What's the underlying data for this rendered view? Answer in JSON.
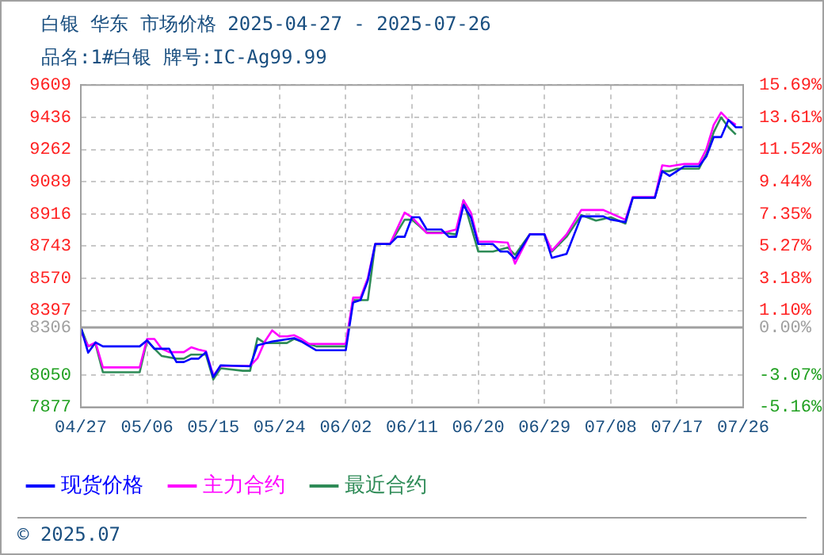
{
  "chart_data": {
    "type": "line",
    "title": "白银 华东 市场价格 2025-04-27 - 2025-07-26",
    "subtitle": "品名:1#白银 牌号:IC-Ag99.99",
    "annotations": [
      "© 2025.07"
    ],
    "legend": "bottom",
    "grid": true,
    "marker": "none",
    "line_style": "solid",
    "ylim": [
      7877,
      9609
    ],
    "yticks": [
      7877,
      8050,
      8306,
      8397,
      8570,
      8743,
      8916,
      9089,
      9262,
      9436,
      9609
    ],
    "y2lim": [
      -5.16,
      15.69
    ],
    "y2ticks": [
      {
        "value": -5.16,
        "label": "-5.16%"
      },
      {
        "value": -3.07,
        "label": "-3.07%"
      },
      {
        "value": 0,
        "label": "0.00%"
      },
      {
        "value": 1.1,
        "label": "1.10%"
      },
      {
        "value": 3.18,
        "label": "3.18%"
      },
      {
        "value": 5.27,
        "label": "5.27%"
      },
      {
        "value": 7.35,
        "label": "7.35%"
      },
      {
        "value": 9.44,
        "label": "9.44%"
      },
      {
        "value": 11.52,
        "label": "11.52%"
      },
      {
        "value": 13.61,
        "label": "13.61%"
      },
      {
        "value": 15.69,
        "label": "15.69%"
      }
    ],
    "xlim": [
      "2025-04-27",
      "2025-07-26"
    ],
    "xticks": [
      {
        "value": "2025-04-27",
        "label": "04/27"
      },
      {
        "value": "2025-05-06",
        "label": "05/06"
      },
      {
        "value": "2025-05-15",
        "label": "05/15"
      },
      {
        "value": "2025-05-24",
        "label": "05/24"
      },
      {
        "value": "2025-06-02",
        "label": "06/02"
      },
      {
        "value": "2025-06-11",
        "label": "06/11"
      },
      {
        "value": "2025-06-20",
        "label": "06/20"
      },
      {
        "value": "2025-06-29",
        "label": "06/29"
      },
      {
        "value": "2025-07-08",
        "label": "07/08"
      },
      {
        "value": "2025-07-17",
        "label": "07/17"
      },
      {
        "value": "2025-07-26",
        "label": "07/26"
      }
    ],
    "ref_lines": [
      {
        "axis": "y",
        "value": 8306,
        "color": "#a0a0a0",
        "line_style": "solid"
      }
    ],
    "series": [
      {
        "name": "现货价格",
        "color": "#0000ff",
        "x": [
          "2025-04-27",
          "2025-04-28",
          "2025-04-29",
          "2025-04-30",
          "2025-05-05",
          "2025-05-06",
          "2025-05-07",
          "2025-05-09",
          "2025-05-10",
          "2025-05-11",
          "2025-05-12",
          "2025-05-13",
          "2025-05-14",
          "2025-05-15",
          "2025-05-16",
          "2025-05-20",
          "2025-05-21",
          "2025-05-23",
          "2025-05-26",
          "2025-05-27",
          "2025-05-29",
          "2025-06-02",
          "2025-06-03",
          "2025-06-04",
          "2025-06-05",
          "2025-06-06",
          "2025-06-08",
          "2025-06-09",
          "2025-06-10",
          "2025-06-11",
          "2025-06-12",
          "2025-06-13",
          "2025-06-15",
          "2025-06-16",
          "2025-06-17",
          "2025-06-18",
          "2025-06-19",
          "2025-06-20",
          "2025-06-22",
          "2025-06-23",
          "2025-06-24",
          "2025-06-25",
          "2025-06-27",
          "2025-06-29",
          "2025-06-30",
          "2025-07-01",
          "2025-07-02",
          "2025-07-04",
          "2025-07-07",
          "2025-07-08",
          "2025-07-10",
          "2025-07-11",
          "2025-07-14",
          "2025-07-15",
          "2025-07-16",
          "2025-07-17",
          "2025-07-18",
          "2025-07-20",
          "2025-07-21",
          "2025-07-22",
          "2025-07-23",
          "2025-07-24",
          "2025-07-25",
          "2025-07-26"
        ],
        "values": [
          8306,
          8170,
          8225,
          8204,
          8204,
          8236,
          8191,
          8191,
          8120,
          8120,
          8138,
          8138,
          8173,
          8039,
          8102,
          8097,
          8210,
          8230,
          8248,
          8230,
          8183,
          8183,
          8440,
          8453,
          8558,
          8754,
          8754,
          8793,
          8793,
          8898,
          8898,
          8832,
          8832,
          8793,
          8793,
          8963,
          8898,
          8754,
          8754,
          8714,
          8714,
          8675,
          8806,
          8806,
          8680,
          8690,
          8701,
          8903,
          8903,
          8885,
          8872,
          9003,
          9003,
          9146,
          9120,
          9146,
          9172,
          9172,
          9225,
          9329,
          9329,
          9421,
          9382,
          9382
        ]
      },
      {
        "name": "主力合约",
        "color": "#ff00ff",
        "x": [
          "2025-04-27",
          "2025-04-28",
          "2025-04-29",
          "2025-04-30",
          "2025-05-05",
          "2025-05-06",
          "2025-05-07",
          "2025-05-08",
          "2025-05-09",
          "2025-05-11",
          "2025-05-12",
          "2025-05-13",
          "2025-05-14",
          "2025-05-15",
          "2025-05-16",
          "2025-05-20",
          "2025-05-21",
          "2025-05-22",
          "2025-05-23",
          "2025-05-24",
          "2025-05-25",
          "2025-05-26",
          "2025-05-27",
          "2025-05-28",
          "2025-06-02",
          "2025-06-03",
          "2025-06-04",
          "2025-06-05",
          "2025-06-06",
          "2025-06-08",
          "2025-06-10",
          "2025-06-11",
          "2025-06-13",
          "2025-06-15",
          "2025-06-17",
          "2025-06-18",
          "2025-06-19",
          "2025-06-20",
          "2025-06-22",
          "2025-06-24",
          "2025-06-25",
          "2025-06-27",
          "2025-06-29",
          "2025-06-30",
          "2025-07-02",
          "2025-07-04",
          "2025-07-07",
          "2025-07-10",
          "2025-07-11",
          "2025-07-14",
          "2025-07-15",
          "2025-07-16",
          "2025-07-18",
          "2025-07-20",
          "2025-07-21",
          "2025-07-22",
          "2025-07-23",
          "2025-07-24",
          "2025-07-25"
        ],
        "values": [
          8283,
          8205,
          8225,
          8091,
          8091,
          8244,
          8244,
          8191,
          8173,
          8173,
          8199,
          8186,
          8178,
          8047,
          8099,
          8099,
          8140,
          8230,
          8290,
          8258,
          8258,
          8264,
          8244,
          8217,
          8217,
          8466,
          8466,
          8571,
          8754,
          8754,
          8923,
          8898,
          8813,
          8813,
          8832,
          8989,
          8923,
          8767,
          8767,
          8762,
          8649,
          8806,
          8806,
          8719,
          8806,
          8937,
          8937,
          8885,
          9007,
          9007,
          9177,
          9172,
          9185,
          9185,
          9264,
          9395,
          9461,
          9421,
          9395
        ]
      },
      {
        "name": "最近合约",
        "color": "#2e8b57",
        "x": [
          "2025-04-27",
          "2025-04-28",
          "2025-04-29",
          "2025-04-30",
          "2025-05-05",
          "2025-05-06",
          "2025-05-07",
          "2025-05-08",
          "2025-05-10",
          "2025-05-11",
          "2025-05-12",
          "2025-05-14",
          "2025-05-15",
          "2025-05-16",
          "2025-05-19",
          "2025-05-20",
          "2025-05-21",
          "2025-05-22",
          "2025-05-25",
          "2025-05-26",
          "2025-05-27",
          "2025-05-29",
          "2025-06-02",
          "2025-06-03",
          "2025-06-05",
          "2025-06-06",
          "2025-06-08",
          "2025-06-10",
          "2025-06-11",
          "2025-06-13",
          "2025-06-15",
          "2025-06-17",
          "2025-06-18",
          "2025-06-20",
          "2025-06-22",
          "2025-06-24",
          "2025-06-25",
          "2025-06-27",
          "2025-06-29",
          "2025-06-30",
          "2025-07-02",
          "2025-07-04",
          "2025-07-06",
          "2025-07-08",
          "2025-07-10",
          "2025-07-11",
          "2025-07-14",
          "2025-07-15",
          "2025-07-16",
          "2025-07-17",
          "2025-07-20",
          "2025-07-21",
          "2025-07-22",
          "2025-07-23",
          "2025-07-24",
          "2025-07-25"
        ],
        "values": [
          8306,
          8204,
          8217,
          8065,
          8065,
          8236,
          8191,
          8152,
          8138,
          8138,
          8160,
          8160,
          8026,
          8086,
          8073,
          8073,
          8248,
          8222,
          8222,
          8244,
          8230,
          8204,
          8204,
          8453,
          8453,
          8754,
          8754,
          8885,
          8885,
          8816,
          8816,
          8806,
          8989,
          8714,
          8714,
          8735,
          8696,
          8806,
          8806,
          8714,
          8793,
          8910,
          8880,
          8898,
          8864,
          9003,
          9003,
          9146,
          9146,
          9159,
          9159,
          9238,
          9356,
          9435,
          9382,
          9343
        ]
      }
    ]
  }
}
